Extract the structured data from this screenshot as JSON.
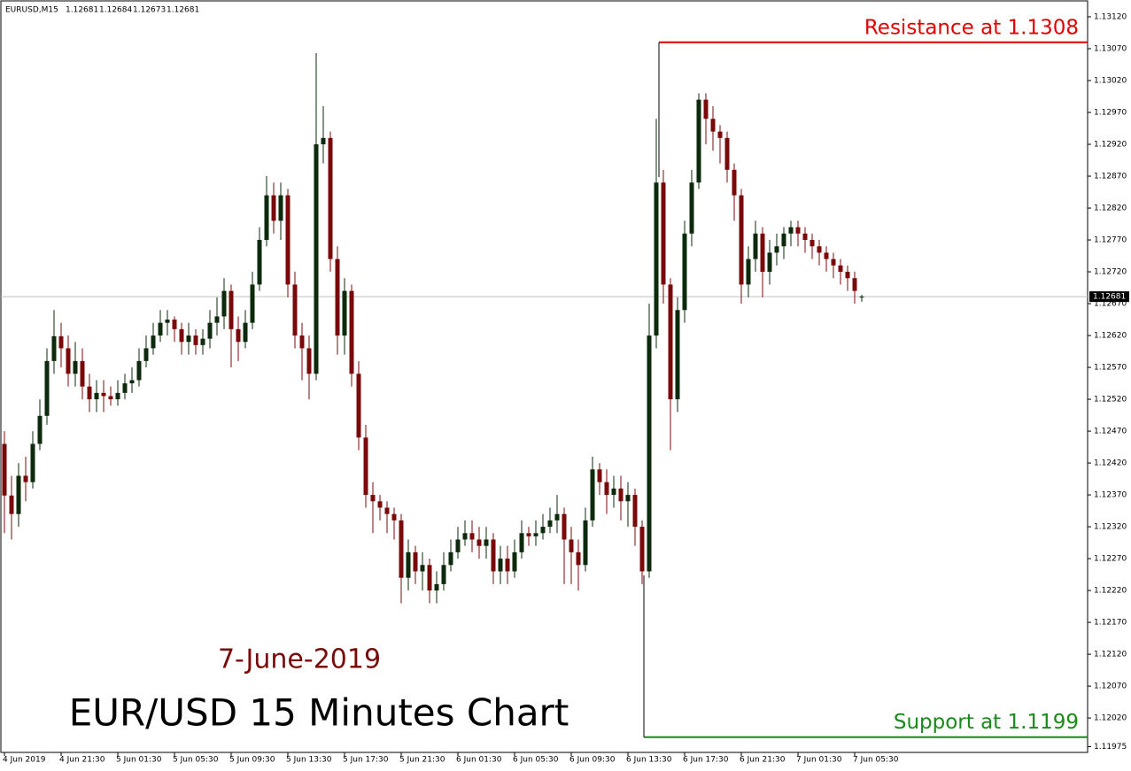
{
  "chart_data": {
    "type": "candlestick",
    "symbol_label": "EURUSD,M15",
    "title": "EUR/USD 15 Minutes Chart",
    "subtitle": "7-June-2019",
    "bull_color": "#0d2a0d",
    "bear_color": "#7a0a0a",
    "title_color": "#000000",
    "subtitle_color": "#7a0a0a",
    "ylim": [
      1.11966,
      1.13145
    ],
    "yticks": [
      {
        "value": 1.1312,
        "label": "1.13120"
      },
      {
        "value": 1.1307,
        "label": "1.13070"
      },
      {
        "value": 1.1302,
        "label": "1.13020"
      },
      {
        "value": 1.1297,
        "label": "1.12970"
      },
      {
        "value": 1.1292,
        "label": "1.12920"
      },
      {
        "value": 1.1287,
        "label": "1.12870"
      },
      {
        "value": 1.1282,
        "label": "1.12820"
      },
      {
        "value": 1.1277,
        "label": "1.12770"
      },
      {
        "value": 1.1272,
        "label": "1.12720"
      },
      {
        "value": 1.1267,
        "label": "1.12670"
      },
      {
        "value": 1.1262,
        "label": "1.12620"
      },
      {
        "value": 1.1257,
        "label": "1.12570"
      },
      {
        "value": 1.1252,
        "label": "1.12520"
      },
      {
        "value": 1.1247,
        "label": "1.12470"
      },
      {
        "value": 1.1242,
        "label": "1.12420"
      },
      {
        "value": 1.1237,
        "label": "1.12370"
      },
      {
        "value": 1.1232,
        "label": "1.12320"
      },
      {
        "value": 1.1227,
        "label": "1.12270"
      },
      {
        "value": 1.1222,
        "label": "1.12220"
      },
      {
        "value": 1.1217,
        "label": "1.12170"
      },
      {
        "value": 1.1212,
        "label": "1.12120"
      },
      {
        "value": 1.1207,
        "label": "1.12070"
      },
      {
        "value": 1.1202,
        "label": "1.12020"
      },
      1.11975
    ],
    "annotations": [
      {
        "text": "Resistance at 1.1308",
        "value": 1.1308,
        "color": "#e00000"
      },
      {
        "text": "Support at 1.1199",
        "value": 1.1199,
        "color": "#1a8a1a"
      }
    ],
    "categories": [
      "4 Jun 2019",
      null,
      null,
      null,
      null,
      null,
      null,
      null,
      "4 Jun 21:30",
      null,
      null,
      null,
      null,
      null,
      null,
      null,
      "5 Jun 01:30",
      null,
      null,
      null,
      null,
      null,
      null,
      null,
      "5 Jun 05:30",
      null,
      null,
      null,
      null,
      null,
      null,
      null,
      "5 Jun 09:30",
      null,
      null,
      null,
      null,
      null,
      null,
      null,
      "5 Jun 13:30",
      null,
      null,
      null,
      null,
      null,
      null,
      null,
      "5 Jun 17:30",
      null,
      null,
      null,
      null,
      null,
      null,
      null,
      "5 Jun 21:30",
      null,
      null,
      null,
      null,
      null,
      null,
      null,
      "6 Jun 01:30",
      null,
      null,
      null,
      null,
      null,
      null,
      null,
      "6 Jun 05:30",
      null,
      null,
      null,
      null,
      null,
      null,
      null,
      "6 Jun 09:30",
      null,
      null,
      null,
      null,
      null,
      null,
      null,
      "6 Jun 13:30",
      null,
      null,
      null,
      null,
      null,
      null,
      null,
      "6 Jun 17:30",
      null,
      null,
      null,
      null,
      null,
      null,
      null,
      "6 Jun 21:30",
      null,
      null,
      null,
      null,
      null,
      null,
      null,
      "7 Jun 01:30",
      null,
      null,
      null,
      null,
      null,
      null,
      null,
      "7 Jun 05:30",
      null
    ],
    "open": [
      1.1245,
      1.12369,
      1.1234,
      1.124,
      1.1239,
      1.1245,
      1.12494,
      1.1258,
      1.12619,
      1.126,
      1.1256,
      1.1258,
      1.1254,
      1.1252,
      1.1253,
      1.12525,
      1.1252,
      1.1253,
      1.12545,
      1.1255,
      1.1258,
      1.126,
      1.1262,
      1.1264,
      1.12645,
      1.1263,
      1.1261,
      1.1262,
      1.12605,
      1.12615,
      1.1264,
      1.1265,
      1.1269,
      1.1263,
      1.1261,
      1.1264,
      1.127,
      1.1277,
      1.1284,
      1.128,
      1.1284,
      1.127,
      1.1262,
      1.126,
      1.1256,
      1.1292,
      1.1293,
      1.1274,
      1.1262,
      1.1269,
      1.1256,
      1.1246,
      1.1237,
      1.1236,
      1.1235,
      1.1234,
      1.1233,
      1.1224,
      1.1228,
      1.1225,
      1.1226,
      1.1222,
      1.1223,
      1.1226,
      1.1228,
      1.123,
      1.1231,
      1.123,
      1.1229,
      1.123,
      1.1225,
      1.1227,
      1.1225,
      1.1228,
      1.1231,
      1.12305,
      1.1231,
      1.1232,
      1.1233,
      1.1234,
      1.123,
      1.1228,
      1.1226,
      1.1233,
      1.1241,
      1.1239,
      1.1237,
      1.1238,
      1.1236,
      1.1237,
      1.1232,
      1.1225,
      1.1262,
      1.1286,
      1.127,
      1.1252,
      1.1266,
      1.1278,
      1.1286,
      1.1299,
      1.1296,
      1.1294,
      1.1293,
      1.1288,
      1.1284,
      1.127,
      1.1274,
      1.1278,
      1.1272,
      1.1275,
      1.1276,
      1.1278,
      1.1279,
      1.1278,
      1.1277,
      1.1276,
      1.1275,
      1.1274,
      1.1273,
      1.1272,
      1.1271,
      1.12681
    ],
    "high": [
      1.1247,
      1.124,
      1.1242,
      1.1243,
      1.1247,
      1.1252,
      1.126,
      1.1266,
      1.1264,
      1.1262,
      1.1261,
      1.126,
      1.1256,
      1.1255,
      1.1255,
      1.1254,
      1.1255,
      1.1256,
      1.1257,
      1.126,
      1.1262,
      1.1264,
      1.1266,
      1.1266,
      1.1265,
      1.1264,
      1.1264,
      1.1263,
      1.1263,
      1.1266,
      1.1268,
      1.1271,
      1.127,
      1.1265,
      1.1266,
      1.1272,
      1.1279,
      1.1287,
      1.1286,
      1.1286,
      1.1285,
      1.1272,
      1.1264,
      1.1262,
      1.13063,
      1.1298,
      1.1294,
      1.1276,
      1.1271,
      1.127,
      1.1258,
      1.1248,
      1.1239,
      1.1237,
      1.1236,
      1.1235,
      1.1234,
      1.123,
      1.1229,
      1.1228,
      1.1227,
      1.1225,
      1.1228,
      1.123,
      1.1232,
      1.1233,
      1.1233,
      1.1232,
      1.1232,
      1.1231,
      1.1229,
      1.1229,
      1.123,
      1.1233,
      1.1232,
      1.1233,
      1.1234,
      1.1235,
      1.1237,
      1.1235,
      1.1232,
      1.123,
      1.1235,
      1.1243,
      1.1242,
      1.1241,
      1.124,
      1.124,
      1.1239,
      1.1238,
      1.1233,
      1.1267,
      1.1296,
      1.1288,
      1.1271,
      1.1268,
      1.128,
      1.1288,
      1.13,
      1.13,
      1.1298,
      1.1295,
      1.1294,
      1.1289,
      1.1285,
      1.1276,
      1.128,
      1.1279,
      1.1277,
      1.1278,
      1.1279,
      1.128,
      1.128,
      1.1279,
      1.1278,
      1.1277,
      1.1276,
      1.1275,
      1.1274,
      1.1273,
      1.1272,
      1.12684
    ],
    "low": [
      1.1231,
      1.123,
      1.1232,
      1.1236,
      1.1238,
      1.1244,
      1.1248,
      1.1256,
      1.1257,
      1.1254,
      1.1254,
      1.1252,
      1.125,
      1.125,
      1.125,
      1.1251,
      1.1251,
      1.1252,
      1.1253,
      1.1254,
      1.1257,
      1.1259,
      1.1261,
      1.1262,
      1.1261,
      1.1259,
      1.1259,
      1.1259,
      1.1259,
      1.126,
      1.1262,
      1.1263,
      1.1257,
      1.1258,
      1.126,
      1.1263,
      1.1269,
      1.1276,
      1.1278,
      1.1277,
      1.1268,
      1.126,
      1.1255,
      1.1252,
      1.1255,
      1.1289,
      1.1272,
      1.1259,
      1.1259,
      1.1254,
      1.1244,
      1.1235,
      1.1231,
      1.1233,
      1.1231,
      1.123,
      1.122,
      1.1222,
      1.1223,
      1.1222,
      1.122,
      1.122,
      1.1222,
      1.1225,
      1.1227,
      1.1229,
      1.1228,
      1.1227,
      1.1227,
      1.1223,
      1.1223,
      1.1223,
      1.1224,
      1.1227,
      1.1229,
      1.1229,
      1.123,
      1.1231,
      1.1231,
      1.1223,
      1.1223,
      1.1222,
      1.1225,
      1.1232,
      1.1237,
      1.1234,
      1.1235,
      1.1233,
      1.1232,
      1.1229,
      1.1223,
      1.1224,
      1.126,
      1.1267,
      1.1244,
      1.125,
      1.1264,
      1.1276,
      1.1285,
      1.1292,
      1.1291,
      1.1289,
      1.1286,
      1.128,
      1.1267,
      1.1268,
      1.1272,
      1.1268,
      1.127,
      1.1273,
      1.1274,
      1.1276,
      1.1276,
      1.1275,
      1.1274,
      1.1273,
      1.1272,
      1.1271,
      1.127,
      1.1269,
      1.1267,
      1.12673
    ],
    "close": [
      1.12369,
      1.1234,
      1.124,
      1.1239,
      1.1245,
      1.12494,
      1.1258,
      1.12619,
      1.126,
      1.1256,
      1.1258,
      1.1254,
      1.1252,
      1.1253,
      1.12525,
      1.1252,
      1.1253,
      1.12545,
      1.1255,
      1.1258,
      1.126,
      1.1262,
      1.1264,
      1.12645,
      1.1263,
      1.1261,
      1.1262,
      1.12605,
      1.12615,
      1.1264,
      1.1265,
      1.1269,
      1.1263,
      1.1261,
      1.1264,
      1.127,
      1.1277,
      1.1284,
      1.128,
      1.1284,
      1.127,
      1.1262,
      1.126,
      1.1256,
      1.1292,
      1.1293,
      1.1274,
      1.1262,
      1.1269,
      1.1256,
      1.1246,
      1.1237,
      1.1236,
      1.1235,
      1.1234,
      1.1233,
      1.1224,
      1.1228,
      1.1225,
      1.1226,
      1.1222,
      1.1223,
      1.1226,
      1.1228,
      1.123,
      1.1231,
      1.123,
      1.1229,
      1.123,
      1.1225,
      1.1227,
      1.1225,
      1.1228,
      1.1231,
      1.12305,
      1.1231,
      1.1232,
      1.1233,
      1.1234,
      1.123,
      1.1228,
      1.1226,
      1.1233,
      1.1241,
      1.1239,
      1.1237,
      1.1238,
      1.1236,
      1.1237,
      1.1232,
      1.1225,
      1.1262,
      1.1286,
      1.127,
      1.1252,
      1.1266,
      1.1278,
      1.1286,
      1.1299,
      1.1296,
      1.1294,
      1.1293,
      1.1288,
      1.1284,
      1.127,
      1.1274,
      1.1278,
      1.1272,
      1.1275,
      1.1276,
      1.1278,
      1.1279,
      1.1278,
      1.1277,
      1.1276,
      1.1275,
      1.1274,
      1.1273,
      1.1272,
      1.1271,
      1.1269,
      1.12681
    ]
  }
}
